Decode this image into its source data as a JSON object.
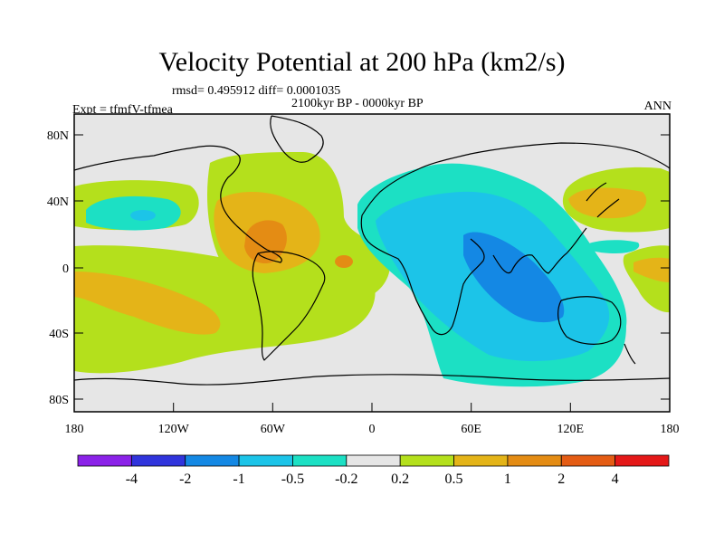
{
  "title": "Velocity Potential at 200 hPa (km2/s)",
  "stats_line": "rmsd= 0.495912 diff= 0.0001035",
  "period_label": "2100kyr BP - 0000kyr BP",
  "experiment_label": "Expt = tfmfV-tfmea",
  "season_label": "ANN",
  "lat_ticks": [
    "80N",
    "40N",
    "0",
    "40S",
    "80S"
  ],
  "lon_ticks": [
    "180",
    "120W",
    "60W",
    "0",
    "60E",
    "120E",
    "180"
  ],
  "colorbar": {
    "colors": [
      "#8b22e8",
      "#3034dc",
      "#1488e4",
      "#1cc4e8",
      "#1ce0c4",
      "#e6e6e6",
      "#b4e01c",
      "#e4b418",
      "#e48c14",
      "#e45c14",
      "#e41818"
    ],
    "labels": [
      "-4",
      "-2",
      "-1",
      "-0.5",
      "-0.2",
      "0.2",
      "0.5",
      "1",
      "2",
      "4"
    ]
  },
  "colors": {
    "background": "#e6e6e6",
    "neg_0_2": "#1ce0c4",
    "neg_0_5": "#1cc4e8",
    "neg_1": "#1488e4",
    "pos_0_2": "#b4e01c",
    "pos_0_5": "#e4b418",
    "pos_1": "#e48c14"
  }
}
